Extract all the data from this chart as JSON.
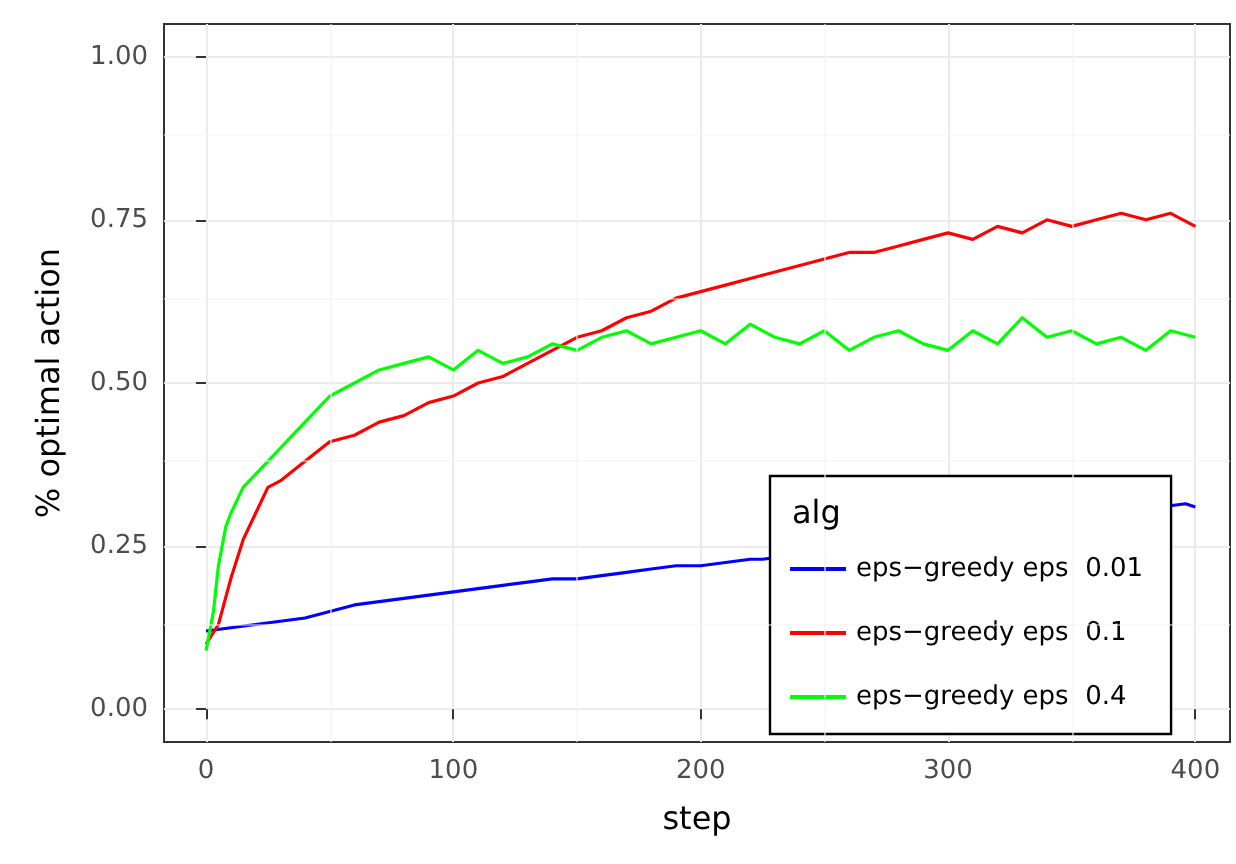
{
  "chart_data": {
    "type": "line",
    "xlabel": "step",
    "ylabel": "% optimal action",
    "legend_title": "alg",
    "legend": "bottom right",
    "grid": true,
    "marker": "none",
    "line_style": "solid",
    "xlim": [
      -17,
      414
    ],
    "xticks": [
      0,
      100,
      200,
      300,
      400
    ],
    "ylim": [
      -0.05,
      1.05
    ],
    "yticks": [
      {
        "value": 0,
        "label": "0.00"
      },
      {
        "value": 0.25,
        "label": "0.25"
      },
      {
        "value": 0.5,
        "label": "0.50"
      },
      {
        "value": 0.75,
        "label": "0.75"
      },
      {
        "value": 1,
        "label": "1.00"
      }
    ],
    "series": [
      {
        "name": "eps−greedy eps  0.01",
        "color": "#0000ff",
        "x": [
          0,
          10,
          20,
          30,
          40,
          50,
          60,
          70,
          80,
          90,
          100,
          110,
          120,
          130,
          140,
          150,
          160,
          170,
          180,
          190,
          200,
          210,
          220,
          225,
          396,
          400
        ],
        "values": [
          0.12,
          0.125,
          0.13,
          0.135,
          0.14,
          0.15,
          0.16,
          0.165,
          0.17,
          0.175,
          0.18,
          0.185,
          0.19,
          0.195,
          0.2,
          0.2,
          0.205,
          0.21,
          0.215,
          0.22,
          0.22,
          0.225,
          0.23,
          0.23,
          0.315,
          0.31
        ]
      },
      {
        "name": "eps−greedy eps  0.1",
        "color": "#ff0000",
        "x": [
          0,
          5,
          10,
          15,
          20,
          25,
          30,
          40,
          50,
          60,
          70,
          80,
          90,
          100,
          110,
          120,
          130,
          140,
          150,
          160,
          170,
          180,
          190,
          200,
          210,
          220,
          230,
          240,
          250,
          260,
          270,
          280,
          290,
          300,
          310,
          320,
          330,
          340,
          350,
          360,
          370,
          380,
          390,
          400
        ],
        "values": [
          0.1,
          0.13,
          0.2,
          0.26,
          0.3,
          0.34,
          0.35,
          0.38,
          0.41,
          0.42,
          0.44,
          0.45,
          0.47,
          0.48,
          0.5,
          0.51,
          0.53,
          0.55,
          0.57,
          0.58,
          0.6,
          0.61,
          0.63,
          0.64,
          0.65,
          0.66,
          0.67,
          0.68,
          0.69,
          0.7,
          0.7,
          0.71,
          0.72,
          0.73,
          0.72,
          0.74,
          0.73,
          0.75,
          0.74,
          0.75,
          0.76,
          0.75,
          0.76,
          0.74
        ]
      },
      {
        "name": "eps−greedy eps  0.4",
        "color": "#00ff00",
        "x": [
          0,
          3,
          5,
          8,
          10,
          15,
          20,
          25,
          30,
          35,
          40,
          50,
          60,
          70,
          80,
          90,
          100,
          110,
          120,
          130,
          140,
          150,
          160,
          170,
          180,
          190,
          200,
          210,
          220,
          230,
          240,
          250,
          260,
          270,
          280,
          290,
          300,
          310,
          320,
          330,
          340,
          350,
          360,
          370,
          380,
          390,
          400
        ],
        "values": [
          0.09,
          0.15,
          0.22,
          0.28,
          0.3,
          0.34,
          0.36,
          0.38,
          0.4,
          0.42,
          0.44,
          0.48,
          0.5,
          0.52,
          0.53,
          0.54,
          0.52,
          0.55,
          0.53,
          0.54,
          0.56,
          0.55,
          0.57,
          0.58,
          0.56,
          0.57,
          0.58,
          0.56,
          0.59,
          0.57,
          0.56,
          0.58,
          0.55,
          0.57,
          0.58,
          0.56,
          0.55,
          0.58,
          0.56,
          0.6,
          0.57,
          0.58,
          0.56,
          0.57,
          0.55,
          0.58,
          0.57
        ]
      }
    ]
  }
}
